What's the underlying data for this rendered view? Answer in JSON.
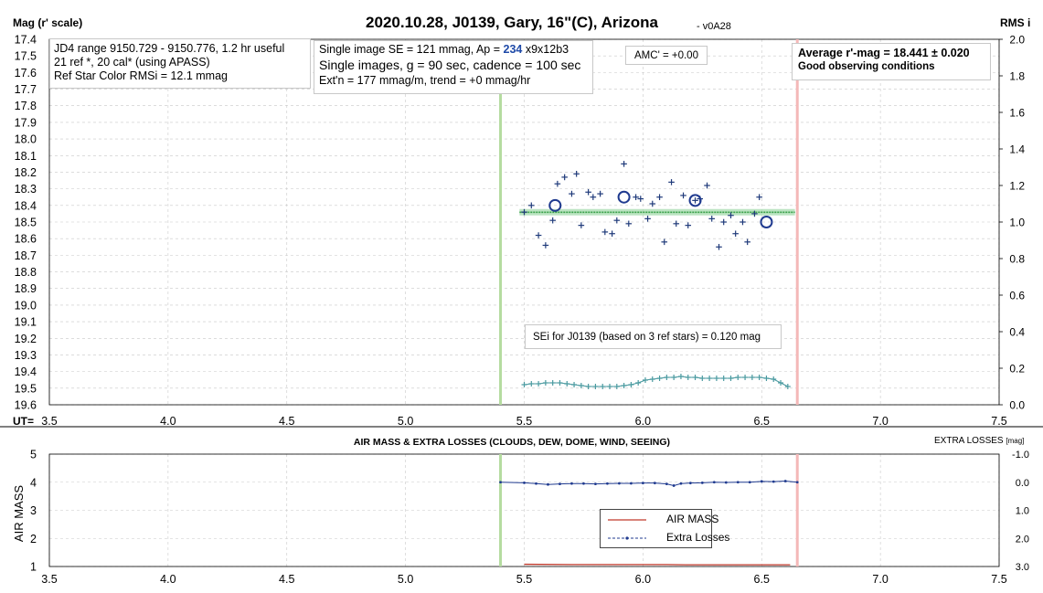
{
  "top": {
    "title": "2020.10.28, J0139, Gary, 16\"(C), Arizona",
    "version": "- v0A28",
    "y_left_label": "Mag (r' scale)",
    "y_right_label": "RMS i",
    "x_label": "UT=",
    "info_left": [
      "JD4 range 9150.729 - 9150.776, 1.2 hr useful",
      "21 ref *, 20 cal* (using APASS)",
      "Ref Star Color RMSi = 12.1 mmag"
    ],
    "info_mid_1_prefix": "Single image SE = 121 mmag, Ap = ",
    "info_mid_1_ap": "234",
    "info_mid_1_suffix": " x9x12b3",
    "info_mid_2": "Single images, g = 90 sec, cadence = 100 sec",
    "info_mid_3": "Ext'n = 177 mmag/m, trend = +0 mmag/hr",
    "amc": "AMC' = +0.00",
    "avg_line1": "Average r'-mag =  18.441 ± 0.020",
    "avg_line2": "Good observing conditions",
    "sei_note": "SEi for J0139 (based on 3 ref stars) = 0.120 mag"
  },
  "bottom": {
    "title": "AIR MASS & EXTRA LOSSES (CLOUDS, DEW, DOME, WIND, SEEING)",
    "y_left_label": "AIR MASS",
    "y_right_label_main": "EXTRA LOSSES",
    "y_right_label_unit": "[mag]",
    "legend_airmass": "AIR MASS",
    "legend_extra": "Extra Losses"
  },
  "colors": {
    "data_plus": "#1f3a7a",
    "circle": "#1f3a8f",
    "avg_line": "#3aa04a",
    "rms_series": "#4a9aa0",
    "green_vline": "#b5dca0",
    "pink_vline": "#f4b8b8",
    "airmass": "#c0392b",
    "extra": "#1f3a8f",
    "grid": "#c8c8c8"
  },
  "chart_data": [
    {
      "type": "scatter",
      "title": "2020.10.28, J0139, Gary, 16\"(C), Arizona",
      "xlabel": "UT=",
      "ylabel": "Mag (r' scale)",
      "y2label": "RMS i",
      "xlim": [
        3.5,
        7.5
      ],
      "ylim": [
        19.6,
        17.4
      ],
      "y2lim": [
        0.0,
        2.0
      ],
      "x_ticks": [
        "3.5",
        "4.0",
        "4.5",
        "5.0",
        "5.5",
        "6.0",
        "6.5",
        "7.0",
        "7.5"
      ],
      "y_ticks": [
        "17.4",
        "17.5",
        "17.6",
        "17.7",
        "17.8",
        "17.9",
        "18.0",
        "18.1",
        "18.2",
        "18.3",
        "18.4",
        "18.5",
        "18.6",
        "18.7",
        "18.8",
        "18.9",
        "19.0",
        "19.1",
        "19.2",
        "19.3",
        "19.4",
        "19.5",
        "19.6"
      ],
      "y2_ticks": [
        "2.0",
        "1.8",
        "1.6",
        "1.4",
        "1.2",
        "1.0",
        "0.8",
        "0.6",
        "0.4",
        "0.2",
        "0.0"
      ],
      "grid": true,
      "vlines": {
        "start": 5.4,
        "end": 6.65
      },
      "average": {
        "value": 18.441,
        "x_range": [
          5.48,
          6.64
        ]
      },
      "series": [
        {
          "marker": "plus",
          "points": [
            [
              5.5,
              18.44
            ],
            [
              5.53,
              18.4
            ],
            [
              5.56,
              18.58
            ],
            [
              5.59,
              18.64
            ],
            [
              5.62,
              18.49
            ],
            [
              5.64,
              18.27
            ],
            [
              5.67,
              18.23
            ],
            [
              5.7,
              18.33
            ],
            [
              5.72,
              18.21
            ],
            [
              5.74,
              18.52
            ],
            [
              5.77,
              18.32
            ],
            [
              5.79,
              18.35
            ],
            [
              5.82,
              18.33
            ],
            [
              5.84,
              18.56
            ],
            [
              5.87,
              18.57
            ],
            [
              5.89,
              18.49
            ],
            [
              5.92,
              18.15
            ],
            [
              5.94,
              18.51
            ],
            [
              5.97,
              18.35
            ],
            [
              5.99,
              18.36
            ],
            [
              6.02,
              18.48
            ],
            [
              6.04,
              18.39
            ],
            [
              6.07,
              18.35
            ],
            [
              6.09,
              18.62
            ],
            [
              6.12,
              18.26
            ],
            [
              6.14,
              18.51
            ],
            [
              6.17,
              18.34
            ],
            [
              6.19,
              18.52
            ],
            [
              6.22,
              18.37
            ],
            [
              6.24,
              18.36
            ],
            [
              6.27,
              18.28
            ],
            [
              6.29,
              18.48
            ],
            [
              6.32,
              18.65
            ],
            [
              6.34,
              18.5
            ],
            [
              6.37,
              18.46
            ],
            [
              6.39,
              18.57
            ],
            [
              6.42,
              18.5
            ],
            [
              6.44,
              18.62
            ],
            [
              6.47,
              18.45
            ],
            [
              6.49,
              18.35
            ]
          ]
        },
        {
          "marker": "circle",
          "points": [
            [
              5.63,
              18.4
            ],
            [
              5.92,
              18.35
            ],
            [
              6.22,
              18.37
            ],
            [
              6.52,
              18.5
            ]
          ]
        },
        {
          "marker": "rms-plus",
          "axis": "y2",
          "points": [
            [
              5.5,
              0.11
            ],
            [
              5.53,
              0.115
            ],
            [
              5.56,
              0.115
            ],
            [
              5.59,
              0.12
            ],
            [
              5.62,
              0.12
            ],
            [
              5.65,
              0.12
            ],
            [
              5.68,
              0.115
            ],
            [
              5.71,
              0.11
            ],
            [
              5.74,
              0.105
            ],
            [
              5.77,
              0.1
            ],
            [
              5.8,
              0.1
            ],
            [
              5.83,
              0.1
            ],
            [
              5.86,
              0.1
            ],
            [
              5.89,
              0.1
            ],
            [
              5.92,
              0.105
            ],
            [
              5.95,
              0.11
            ],
            [
              5.98,
              0.12
            ],
            [
              6.01,
              0.135
            ],
            [
              6.04,
              0.14
            ],
            [
              6.07,
              0.145
            ],
            [
              6.1,
              0.15
            ],
            [
              6.13,
              0.15
            ],
            [
              6.16,
              0.155
            ],
            [
              6.19,
              0.15
            ],
            [
              6.22,
              0.15
            ],
            [
              6.25,
              0.145
            ],
            [
              6.28,
              0.145
            ],
            [
              6.31,
              0.145
            ],
            [
              6.34,
              0.145
            ],
            [
              6.37,
              0.145
            ],
            [
              6.4,
              0.15
            ],
            [
              6.43,
              0.15
            ],
            [
              6.46,
              0.15
            ],
            [
              6.49,
              0.15
            ],
            [
              6.52,
              0.145
            ],
            [
              6.55,
              0.14
            ],
            [
              6.58,
              0.12
            ],
            [
              6.61,
              0.1
            ]
          ]
        }
      ],
      "annotations": [
        "SEi for J0139 (based on 3 ref stars) = 0.120 mag",
        "AMC' = +0.00",
        "Average r'-mag =  18.441 ± 0.020",
        "Good observing conditions"
      ]
    },
    {
      "type": "line",
      "title": "AIR MASS & EXTRA LOSSES (CLOUDS, DEW, DOME, WIND, SEEING)",
      "ylabel": "AIR MASS",
      "y2label": "EXTRA LOSSES [mag]",
      "xlim": [
        3.5,
        7.5
      ],
      "ylim": [
        1,
        5
      ],
      "y2lim": [
        3.0,
        -1.0
      ],
      "x_ticks": [
        "3.5",
        "4.0",
        "4.5",
        "5.0",
        "5.5",
        "6.0",
        "6.5",
        "7.0",
        "7.5"
      ],
      "y_ticks": [
        "5",
        "4",
        "3",
        "2",
        "1"
      ],
      "y2_ticks": [
        "-1.0",
        "0.0",
        "1.0",
        "2.0",
        "3.0"
      ],
      "grid": true,
      "vlines": {
        "start": 5.4,
        "end": 6.65
      },
      "legend": [
        "AIR MASS",
        "Extra Losses"
      ],
      "series": [
        {
          "name": "AIR MASS",
          "points": [
            [
              5.5,
              1.08
            ],
            [
              5.7,
              1.07
            ],
            [
              5.9,
              1.07
            ],
            [
              6.1,
              1.07
            ],
            [
              6.18,
              1.06
            ],
            [
              6.4,
              1.06
            ],
            [
              6.62,
              1.06
            ]
          ]
        },
        {
          "name": "Extra Losses",
          "points": [
            [
              5.4,
              0.0
            ],
            [
              5.5,
              0.02
            ],
            [
              5.55,
              0.05
            ],
            [
              5.6,
              0.08
            ],
            [
              5.65,
              0.06
            ],
            [
              5.7,
              0.05
            ],
            [
              5.75,
              0.05
            ],
            [
              5.8,
              0.06
            ],
            [
              5.85,
              0.05
            ],
            [
              5.9,
              0.04
            ],
            [
              5.95,
              0.04
            ],
            [
              6.0,
              0.03
            ],
            [
              6.05,
              0.03
            ],
            [
              6.1,
              0.06
            ],
            [
              6.13,
              0.12
            ],
            [
              6.16,
              0.05
            ],
            [
              6.2,
              0.03
            ],
            [
              6.25,
              0.02
            ],
            [
              6.3,
              0.0
            ],
            [
              6.35,
              0.01
            ],
            [
              6.4,
              0.0
            ],
            [
              6.45,
              0.0
            ],
            [
              6.5,
              -0.03
            ],
            [
              6.55,
              -0.02
            ],
            [
              6.6,
              -0.04
            ],
            [
              6.65,
              0.0
            ]
          ]
        }
      ]
    }
  ]
}
